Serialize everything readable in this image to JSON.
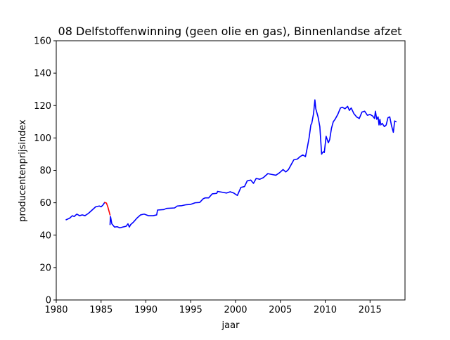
{
  "chart_data": {
    "type": "line",
    "title": "08 Delfstoffenwinning (geen olie en gas), Binnenlandse afzet",
    "xlabel": "jaar",
    "ylabel": "producentenprijsindex",
    "xlim": [
      1980,
      2018.9
    ],
    "ylim": [
      0,
      160
    ],
    "x_ticks": [
      "1980",
      "1985",
      "1990",
      "1995",
      "2000",
      "2005",
      "2010",
      "2015"
    ],
    "y_ticks": [
      "0",
      "20",
      "40",
      "60",
      "80",
      "100",
      "120",
      "140",
      "160"
    ],
    "grid": false,
    "series": [
      {
        "color": "#0000ff",
        "segment": "main-before",
        "x": [
          1981.1,
          1981.5,
          1981.8,
          1982.0,
          1982.3,
          1982.6,
          1982.9,
          1983.2,
          1983.6,
          1984.0,
          1984.4,
          1984.8,
          1985.0,
          1985.2,
          1985.4
        ],
        "y": [
          49.5,
          50.5,
          52.0,
          51.5,
          53.0,
          52.0,
          52.5,
          52.0,
          53.5,
          55.5,
          57.5,
          58.0,
          57.5,
          58.5,
          60.2
        ]
      },
      {
        "color": "#ff0000",
        "segment": "highlight",
        "x": [
          1985.4,
          1985.6,
          1985.75,
          1985.9,
          1986.0
        ],
        "y": [
          60.2,
          59.8,
          57.5,
          54.5,
          52.5
        ]
      },
      {
        "color": "#0000ff",
        "segment": "main-after",
        "x": [
          1986.0,
          1986.05,
          1986.1,
          1986.2,
          1986.35,
          1986.5,
          1986.8,
          1987.1,
          1987.4,
          1987.8,
          1988.0,
          1988.15,
          1988.3,
          1988.6,
          1989.0,
          1989.4,
          1989.8,
          1990.3,
          1990.8,
          1991.2,
          1991.3,
          1992.0,
          1992.3,
          1993.2,
          1993.5,
          1994.0,
          1994.5,
          1995.0,
          1995.5,
          1996.0,
          1996.4,
          1996.6,
          1997.0,
          1997.4,
          1997.9,
          1998.0,
          1998.5,
          1999.0,
          1999.4,
          1999.8,
          2000.2,
          2000.6,
          2001.0,
          2001.3,
          2001.7,
          2002.0,
          2002.3,
          2002.7,
          2003.1,
          2003.6,
          2004.0,
          2004.5,
          2004.9,
          2005.3,
          2005.6,
          2005.9,
          2006.2,
          2006.5,
          2006.9,
          2007.2,
          2007.5,
          2007.8,
          2008.0,
          2008.2,
          2008.4,
          2008.5,
          2008.7,
          2008.85,
          2008.95,
          2009.05,
          2009.2,
          2009.4,
          2009.6,
          2009.7,
          2009.8,
          2009.9,
          2010.1,
          2010.35,
          2010.5,
          2010.7,
          2010.9,
          2011.1,
          2011.4,
          2011.7,
          2011.9,
          2012.2,
          2012.5,
          2012.7,
          2012.9,
          2013.2,
          2013.5,
          2013.8,
          2014.1,
          2014.4,
          2014.7,
          2015.0,
          2015.3,
          2015.5,
          2015.6,
          2015.75,
          2015.9,
          2016.0,
          2016.1,
          2016.2,
          2016.35,
          2016.6,
          2016.8,
          2017.0,
          2017.2,
          2017.4,
          2017.6,
          2017.75,
          2017.9
        ],
        "y": [
          46.5,
          51.5,
          50.0,
          47.0,
          46.0,
          45.0,
          45.2,
          44.5,
          45.0,
          45.5,
          47.0,
          45.0,
          46.5,
          48.0,
          50.5,
          52.5,
          53.0,
          52.0,
          52.0,
          52.5,
          55.5,
          55.8,
          56.5,
          56.8,
          58.0,
          58.2,
          58.8,
          59.0,
          60.0,
          60.2,
          62.5,
          63.0,
          63.0,
          65.5,
          65.8,
          67.0,
          66.5,
          66.0,
          66.8,
          66.0,
          64.5,
          69.5,
          70.0,
          73.5,
          74.0,
          72.0,
          75.0,
          74.5,
          75.5,
          78.0,
          77.5,
          77.0,
          78.5,
          80.5,
          79.0,
          80.5,
          83.5,
          86.5,
          87.0,
          88.5,
          89.5,
          88.5,
          94.0,
          100.0,
          108.0,
          109.0,
          115.0,
          123.5,
          118.0,
          116.0,
          113.0,
          107.0,
          90.0,
          91.0,
          91.5,
          91.0,
          101.0,
          97.0,
          99.0,
          106.0,
          110.0,
          111.5,
          114.5,
          118.5,
          119.0,
          118.0,
          119.5,
          117.0,
          118.5,
          115.0,
          113.0,
          112.0,
          116.0,
          116.5,
          114.0,
          114.5,
          113.5,
          112.0,
          116.5,
          111.5,
          113.0,
          108.0,
          111.5,
          108.0,
          109.0,
          107.0,
          108.0,
          112.5,
          113.0,
          107.5,
          103.5,
          110.5,
          110.0
        ]
      }
    ]
  }
}
